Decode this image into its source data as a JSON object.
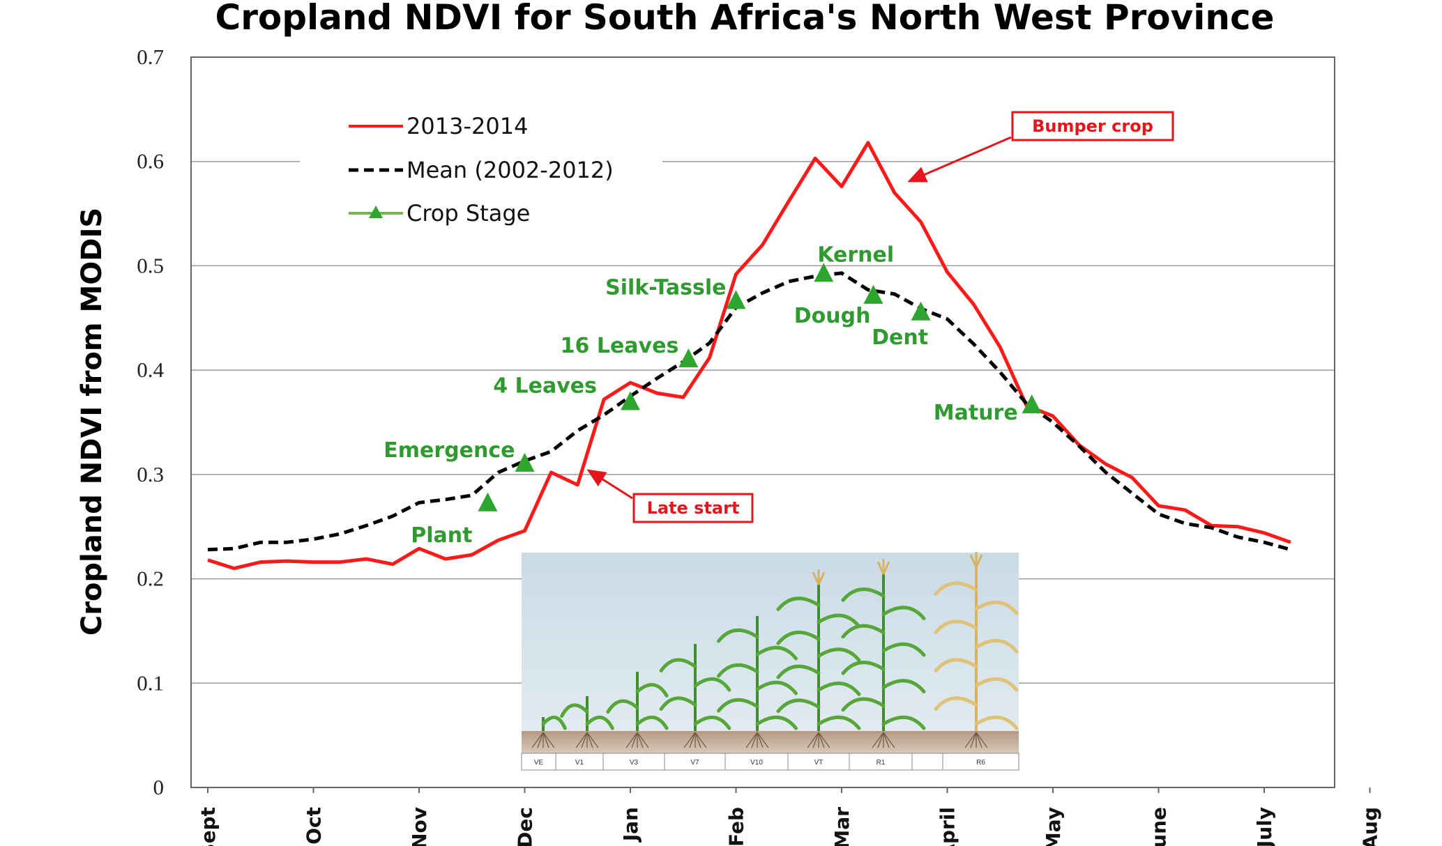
{
  "chart_data": {
    "type": "line",
    "title": "Cropland NDVI for South Africa's North West Province",
    "ylabel": "Cropland NDVI from MODIS",
    "xlabel": "",
    "ylim": [
      0,
      0.7
    ],
    "yticks": [
      "0",
      "0.1",
      "0.2",
      "0.3",
      "0.4",
      "0.5",
      "0.6",
      "0.7"
    ],
    "ytick_values": [
      0,
      0.1,
      0.2,
      0.3,
      0.4,
      0.5,
      0.6,
      0.7
    ],
    "xticks": [
      "Sept",
      "Oct",
      "Nov",
      "Dec",
      "Jan",
      "Feb",
      "Mar",
      "April",
      "May",
      "June",
      "July",
      "Aug"
    ],
    "xlim": [
      0,
      11
    ],
    "grid": true,
    "legend": {
      "placement": "top-left",
      "entries": [
        {
          "label": "2013-2014",
          "style": "solid",
          "color": "#ff1a1a"
        },
        {
          "label": "Mean (2002-2012)",
          "style": "dashed",
          "color": "#000000"
        },
        {
          "label": "Crop Stage",
          "style": "marker",
          "color": "#2fa52f"
        }
      ]
    },
    "series": [
      {
        "name": "2013-2014",
        "color": "#ff1a1a",
        "points": [
          [
            0.0,
            0.218
          ],
          [
            0.25,
            0.21
          ],
          [
            0.5,
            0.216
          ],
          [
            0.75,
            0.217
          ],
          [
            1.0,
            0.216
          ],
          [
            1.25,
            0.216
          ],
          [
            1.5,
            0.219
          ],
          [
            1.75,
            0.214
          ],
          [
            2.0,
            0.229
          ],
          [
            2.25,
            0.219
          ],
          [
            2.5,
            0.223
          ],
          [
            2.75,
            0.237
          ],
          [
            3.0,
            0.246
          ],
          [
            3.25,
            0.302
          ],
          [
            3.5,
            0.29
          ],
          [
            3.75,
            0.372
          ],
          [
            4.0,
            0.388
          ],
          [
            4.25,
            0.378
          ],
          [
            4.5,
            0.374
          ],
          [
            4.75,
            0.412
          ],
          [
            5.0,
            0.492
          ],
          [
            5.25,
            0.52
          ],
          [
            5.5,
            0.562
          ],
          [
            5.75,
            0.603
          ],
          [
            6.0,
            0.576
          ],
          [
            6.25,
            0.618
          ],
          [
            6.5,
            0.57
          ],
          [
            6.75,
            0.542
          ],
          [
            7.0,
            0.494
          ],
          [
            7.25,
            0.463
          ],
          [
            7.5,
            0.422
          ],
          [
            7.75,
            0.366
          ],
          [
            8.0,
            0.356
          ],
          [
            8.25,
            0.328
          ],
          [
            8.5,
            0.31
          ],
          [
            8.75,
            0.297
          ],
          [
            9.0,
            0.27
          ],
          [
            9.25,
            0.266
          ],
          [
            9.5,
            0.251
          ],
          [
            9.75,
            0.25
          ],
          [
            10.0,
            0.244
          ],
          [
            10.25,
            0.235
          ]
        ]
      },
      {
        "name": "Mean (2002-2012)",
        "color": "#000000",
        "points": [
          [
            0.0,
            0.228
          ],
          [
            0.25,
            0.229
          ],
          [
            0.5,
            0.235
          ],
          [
            0.75,
            0.235
          ],
          [
            1.0,
            0.238
          ],
          [
            1.25,
            0.243
          ],
          [
            1.5,
            0.251
          ],
          [
            1.75,
            0.26
          ],
          [
            2.0,
            0.273
          ],
          [
            2.25,
            0.276
          ],
          [
            2.5,
            0.28
          ],
          [
            2.75,
            0.302
          ],
          [
            3.0,
            0.313
          ],
          [
            3.25,
            0.322
          ],
          [
            3.5,
            0.342
          ],
          [
            3.75,
            0.357
          ],
          [
            4.0,
            0.375
          ],
          [
            4.25,
            0.392
          ],
          [
            4.5,
            0.408
          ],
          [
            4.75,
            0.426
          ],
          [
            5.0,
            0.46
          ],
          [
            5.25,
            0.474
          ],
          [
            5.5,
            0.485
          ],
          [
            5.75,
            0.49
          ],
          [
            6.0,
            0.493
          ],
          [
            6.25,
            0.477
          ],
          [
            6.5,
            0.473
          ],
          [
            6.75,
            0.459
          ],
          [
            7.0,
            0.449
          ],
          [
            7.25,
            0.425
          ],
          [
            7.5,
            0.398
          ],
          [
            7.75,
            0.368
          ],
          [
            8.0,
            0.35
          ],
          [
            8.25,
            0.327
          ],
          [
            8.5,
            0.302
          ],
          [
            8.75,
            0.282
          ],
          [
            9.0,
            0.262
          ],
          [
            9.25,
            0.253
          ],
          [
            9.5,
            0.249
          ],
          [
            9.75,
            0.24
          ],
          [
            10.0,
            0.235
          ],
          [
            10.25,
            0.228
          ]
        ]
      }
    ],
    "crop_stages": [
      {
        "label": "Plant",
        "x": 2.65,
        "y": 0.272,
        "anchor": "below-left"
      },
      {
        "label": "Emergence",
        "x": 3.0,
        "y": 0.31,
        "anchor": "above-left"
      },
      {
        "label": "4 Leaves",
        "x": 4.0,
        "y": 0.369,
        "anchor": "left"
      },
      {
        "label": "16 Leaves",
        "x": 4.55,
        "y": 0.41,
        "anchor": "above-left"
      },
      {
        "label": "Silk-Tassle",
        "x": 5.0,
        "y": 0.466,
        "anchor": "above-left"
      },
      {
        "label": "Kernel",
        "x": 5.83,
        "y": 0.492,
        "anchor": "above"
      },
      {
        "label": "Dough",
        "x": 6.3,
        "y": 0.471,
        "anchor": "below-left"
      },
      {
        "label": "Dent",
        "x": 6.75,
        "y": 0.455,
        "anchor": "below"
      },
      {
        "label": "Mature",
        "x": 7.8,
        "y": 0.366,
        "anchor": "left"
      }
    ],
    "annotations": [
      {
        "text": "Bumper crop",
        "arrow_to": [
          6.45,
          0.582
        ]
      },
      {
        "text": "Late start",
        "arrow_to": [
          3.6,
          0.3
        ]
      }
    ],
    "inset_image": {
      "description_icon": "corn-growth-stages-illustration",
      "stage_labels": [
        "VE",
        "V1",
        "V3",
        "V7",
        "V10",
        "VT",
        "R1",
        "",
        "R6"
      ]
    }
  }
}
